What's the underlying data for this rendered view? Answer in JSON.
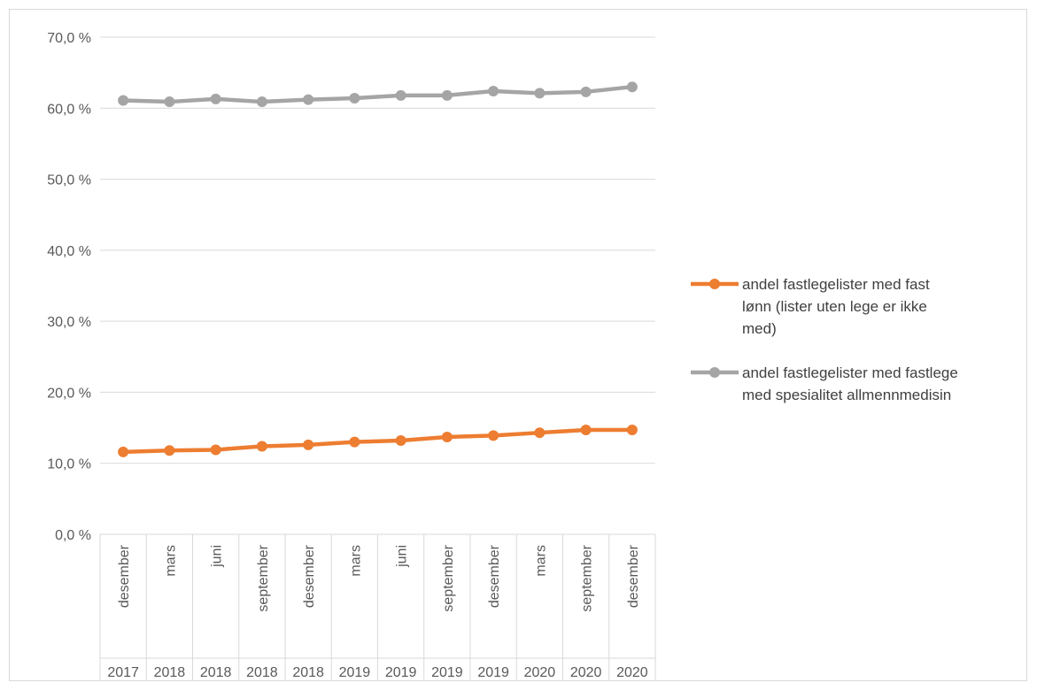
{
  "chart_data": {
    "type": "line",
    "categories_inner": [
      "desember",
      "mars",
      "juni",
      "september",
      "desember",
      "mars",
      "juni",
      "september",
      "desember",
      "mars",
      "september",
      "desember"
    ],
    "categories_outer": [
      "2017",
      "2018",
      "2018",
      "2018",
      "2018",
      "2019",
      "2019",
      "2019",
      "2019",
      "2020",
      "2020",
      "2020"
    ],
    "series": [
      {
        "name": "andel fastlegelister med fast lønn (lister uten lege er ikke med)",
        "name_lines": [
          "andel fastlegelister med fast",
          "lønn (lister uten lege er ikke",
          "med)"
        ],
        "color": "#ED7D31",
        "values": [
          11.6,
          11.8,
          11.9,
          12.4,
          12.6,
          13.0,
          13.2,
          13.7,
          13.9,
          14.3,
          14.7,
          14.7
        ]
      },
      {
        "name": "andel fastlegelister med fastlege med spesialitet allmennmedisin",
        "name_lines": [
          "andel fastlegelister med fastlege",
          "med spesialitet allmennmedisin"
        ],
        "color": "#A5A5A5",
        "values": [
          61.1,
          60.9,
          61.3,
          60.9,
          61.2,
          61.4,
          61.8,
          61.8,
          62.4,
          62.1,
          62.3,
          63.0
        ]
      }
    ],
    "ylim": [
      0,
      70
    ],
    "yticks": [
      "0,0 %",
      "10,0 %",
      "20,0 %",
      "30,0 %",
      "40,0 %",
      "50,0 %",
      "60,0 %",
      "70,0 %"
    ],
    "grid": true,
    "legend_position": "right"
  }
}
